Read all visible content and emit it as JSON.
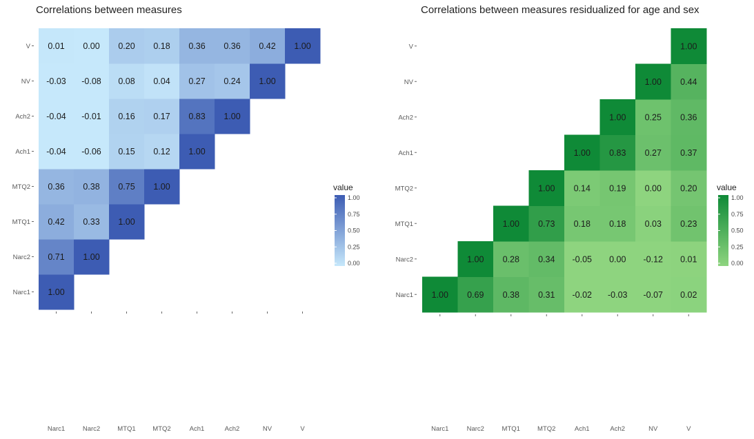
{
  "chart_data": [
    {
      "type": "heatmap",
      "title": "Correlations between measures",
      "variables": [
        "Narc1",
        "Narc2",
        "MTQ1",
        "MTQ2",
        "Ach1",
        "Ach2",
        "NV",
        "V"
      ],
      "triangle": "upper",
      "matrix": [
        [
          1.0,
          0.71,
          0.42,
          0.36,
          -0.04,
          -0.04,
          -0.03,
          0.01
        ],
        [
          0.71,
          1.0,
          0.33,
          0.38,
          -0.06,
          -0.01,
          -0.08,
          0.0
        ],
        [
          0.42,
          0.33,
          1.0,
          0.75,
          0.15,
          0.16,
          0.08,
          0.2
        ],
        [
          0.36,
          0.38,
          0.75,
          1.0,
          0.12,
          0.17,
          0.04,
          0.18
        ],
        [
          -0.04,
          -0.06,
          0.15,
          0.12,
          1.0,
          0.83,
          0.27,
          0.36
        ],
        [
          -0.04,
          -0.01,
          0.16,
          0.17,
          0.83,
          1.0,
          0.24,
          0.36
        ],
        [
          -0.03,
          -0.08,
          0.08,
          0.04,
          0.27,
          0.24,
          1.0,
          0.42
        ],
        [
          0.01,
          0.0,
          0.2,
          0.18,
          0.36,
          0.36,
          0.42,
          1.0
        ]
      ],
      "legend": {
        "title": "value",
        "ticks": [
          "1.00",
          "0.75",
          "0.50",
          "0.25",
          "0.00"
        ],
        "range": [
          0,
          1
        ],
        "low_color": "#c6e8fb",
        "high_color": "#3d5cb3"
      },
      "text_color": "#1b1b1b"
    },
    {
      "type": "heatmap",
      "title": "Correlations between measures residualized for age and sex",
      "variables": [
        "Narc1",
        "Narc2",
        "MTQ1",
        "MTQ2",
        "Ach1",
        "Ach2",
        "NV",
        "V"
      ],
      "triangle": "lower",
      "matrix": [
        [
          1.0,
          0.69,
          0.38,
          0.31,
          -0.02,
          -0.03,
          -0.07,
          0.02
        ],
        [
          0.69,
          1.0,
          0.28,
          0.34,
          -0.05,
          0.0,
          -0.12,
          0.01
        ],
        [
          0.38,
          0.28,
          1.0,
          0.73,
          0.18,
          0.18,
          0.03,
          0.23
        ],
        [
          0.31,
          0.34,
          0.73,
          1.0,
          0.14,
          0.19,
          0.0,
          0.2
        ],
        [
          -0.02,
          -0.05,
          0.18,
          0.14,
          1.0,
          0.83,
          0.27,
          0.37
        ],
        [
          -0.03,
          0.0,
          0.18,
          0.19,
          0.83,
          1.0,
          0.25,
          0.36
        ],
        [
          -0.07,
          -0.12,
          0.03,
          0.0,
          0.27,
          0.25,
          1.0,
          0.44
        ],
        [
          0.02,
          0.01,
          0.23,
          0.2,
          0.37,
          0.36,
          0.44,
          1.0
        ]
      ],
      "legend": {
        "title": "value",
        "ticks": [
          "1.00",
          "0.75",
          "0.50",
          "0.25",
          "0.00"
        ],
        "range": [
          0,
          1
        ],
        "low_color": "#8ed47f",
        "high_color": "#0f8a37"
      },
      "text_color": "#1b1b1b"
    }
  ]
}
